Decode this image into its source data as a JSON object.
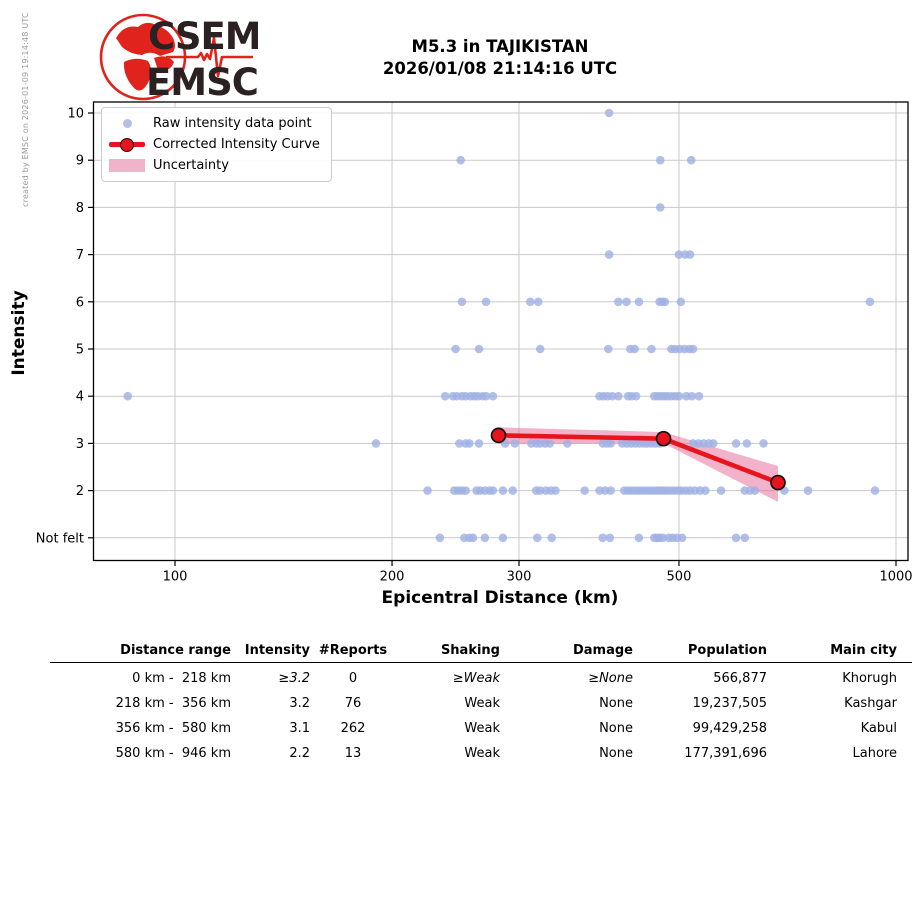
{
  "watermark": "created by EMSC on 2026-01-09 19:14:48 UTC",
  "logo": {
    "line1": "CSEM",
    "line2": "EMSC",
    "globe_color": "#e0231c",
    "text_color": "#2b2122"
  },
  "title": {
    "line1": "M5.3 in TAJIKISTAN",
    "line2": "2026/01/08 21:14:16 UTC"
  },
  "chart_data": {
    "type": "scatter",
    "title": "",
    "xlabel": "Epicentral Distance (km)",
    "ylabel": "Intensity",
    "x_scale": "log",
    "xlim": [
      77,
      1040
    ],
    "ylim": [
      0.53,
      10.23
    ],
    "x_ticks": [
      100,
      200,
      300,
      500,
      1000
    ],
    "x_tick_labels": [
      "100",
      "200",
      "300",
      "500",
      "1000"
    ],
    "y_ticks": [
      10,
      9,
      8,
      7,
      6,
      5,
      4,
      3,
      2,
      1
    ],
    "y_tick_labels": [
      "10",
      "9",
      "8",
      "7",
      "6",
      "5",
      "4",
      "3",
      "2",
      "Not felt"
    ],
    "grid": true,
    "legend": [
      "Raw intensity data point",
      "Corrected Intensity Curve",
      "Uncertainty"
    ],
    "legend_position": "upper left",
    "colors": {
      "raw_point": "#9fb0e3",
      "raw_point_solid": "#b2c0e9",
      "curve": "#e8131b",
      "marker_edge": "#111111",
      "uncertainty": "#e8739f",
      "grid": "#c9c9c9",
      "spine": "#000000"
    },
    "raw_points": [
      {
        "intensity": 10,
        "distances": [
          400
        ]
      },
      {
        "intensity": 9,
        "distances": [
          249,
          471,
          520
        ]
      },
      {
        "intensity": 8,
        "distances": [
          471
        ]
      },
      {
        "intensity": 7,
        "distances": [
          400,
          500,
          510,
          518
        ]
      },
      {
        "intensity": 6,
        "distances": [
          250,
          270,
          311,
          319,
          412,
          423,
          440,
          470,
          474,
          478,
          503,
          920
        ]
      },
      {
        "intensity": 5,
        "distances": [
          245,
          264,
          321,
          399,
          428,
          434,
          458,
          488,
          494,
          501,
          509,
          517,
          523
        ]
      },
      {
        "intensity": 4,
        "distances": [
          86,
          237,
          243,
          246,
          250,
          253,
          257,
          260,
          263,
          267,
          270,
          276,
          388,
          393,
          398,
          404,
          412,
          425,
          430,
          436,
          462,
          467,
          472,
          477,
          482,
          488,
          494,
          500,
          512,
          521,
          533
        ]
      },
      {
        "intensity": 3,
        "distances": [
          190,
          248,
          253,
          256,
          264,
          287,
          296,
          312,
          317,
          321,
          326,
          331,
          350,
          392,
          397,
          402,
          417,
          423,
          429,
          435,
          441,
          447,
          452,
          458,
          464,
          470,
          523,
          532,
          541,
          550,
          558,
          600,
          621,
          655
        ]
      },
      {
        "intensity": 2,
        "distances": [
          224,
          244,
          247,
          250,
          253,
          262,
          265,
          269,
          273,
          276,
          285,
          294,
          317,
          321,
          327,
          332,
          337,
          370,
          388,
          395,
          402,
          420,
          425,
          430,
          435,
          440,
          445,
          450,
          455,
          460,
          465,
          470,
          475,
          480,
          486,
          492,
          498,
          504,
          511,
          518,
          526,
          535,
          544,
          572,
          617,
          627,
          637,
          700,
          755,
          935
        ]
      },
      {
        "intensity": 1,
        "distances": [
          233,
          252,
          256,
          259,
          269,
          285,
          318,
          333,
          392,
          401,
          440,
          462,
          466,
          470,
          475,
          484,
          490,
          497,
          505,
          600,
          617
        ]
      }
    ],
    "curve": {
      "name": "Corrected Intensity Curve",
      "points": [
        [
          281,
          3.17
        ],
        [
          476,
          3.1
        ],
        [
          686,
          2.17
        ]
      ]
    },
    "uncertainty_band": {
      "upper": [
        [
          281,
          3.34
        ],
        [
          476,
          3.24
        ],
        [
          686,
          2.52
        ]
      ],
      "lower": [
        [
          281,
          2.99
        ],
        [
          476,
          3.0
        ],
        [
          686,
          1.76
        ]
      ]
    }
  },
  "table": {
    "headers": [
      "Distance range",
      "Intensity",
      "#Reports",
      "Shaking",
      "Damage",
      "Population",
      "Main city"
    ],
    "rows": [
      [
        "0 km -  218 km",
        "≥3.2",
        "0",
        "≥Weak",
        "≥None",
        "566,877",
        "Khorugh"
      ],
      [
        "218 km -  356 km",
        "3.2",
        "76",
        "Weak",
        "None",
        "19,237,505",
        "Kashgar"
      ],
      [
        "356 km -  580 km",
        "3.1",
        "262",
        "Weak",
        "None",
        "99,429,258",
        "Kabul"
      ],
      [
        "580 km -  946 km",
        "2.2",
        "13",
        "Weak",
        "None",
        "177,391,696",
        "Lahore"
      ]
    ]
  }
}
